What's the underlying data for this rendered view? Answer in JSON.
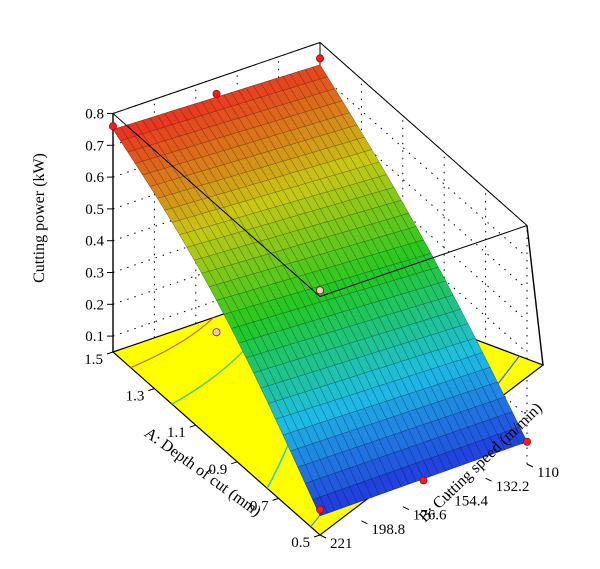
{
  "chart_data": {
    "type": "surface",
    "zlabel": "Cutting power (kW)",
    "xlabel": "A: Depth of cut (mm)",
    "ylabel": "B: Cutting speed (m/min)",
    "x_ticks": [
      "0.5",
      "0.7",
      "0.9",
      "1.1",
      "1.3",
      "1.5"
    ],
    "y_ticks": [
      "110",
      "132.2",
      "154.4",
      "176.6",
      "198.8",
      "221"
    ],
    "z_ticks": [
      "0.1",
      "0.2",
      "0.3",
      "0.4",
      "0.5",
      "0.6",
      "0.7",
      "0.8"
    ],
    "xlim": [
      0.5,
      1.5
    ],
    "ylim": [
      110,
      221
    ],
    "zlim": [
      0.05,
      0.8
    ],
    "colors": {
      "floor": "#ffff00",
      "point": "#ff1a1a",
      "low": "#2233dd",
      "mid": "#22cc22",
      "high": "#ee2222"
    },
    "surface_corners": [
      {
        "depth": 1.5,
        "speed": 221,
        "power": 0.75
      },
      {
        "depth": 1.5,
        "speed": 110,
        "power": 0.73
      },
      {
        "depth": 0.5,
        "speed": 110,
        "power": 0.12
      },
      {
        "depth": 0.5,
        "speed": 221,
        "power": 0.11
      }
    ],
    "design_points": [
      {
        "depth": 1.5,
        "speed": 221,
        "power": 0.76
      },
      {
        "depth": 1.5,
        "speed": 165.5,
        "power": 0.75
      },
      {
        "depth": 1.5,
        "speed": 110,
        "power": 0.75
      },
      {
        "depth": 1.0,
        "speed": 221,
        "power": 0.4
      },
      {
        "depth": 1.0,
        "speed": 165.5,
        "power": 0.42
      },
      {
        "depth": 0.5,
        "speed": 221,
        "power": 0.13
      },
      {
        "depth": 0.5,
        "speed": 165.5,
        "power": 0.11
      },
      {
        "depth": 0.5,
        "speed": 110,
        "power": 0.12
      }
    ]
  }
}
